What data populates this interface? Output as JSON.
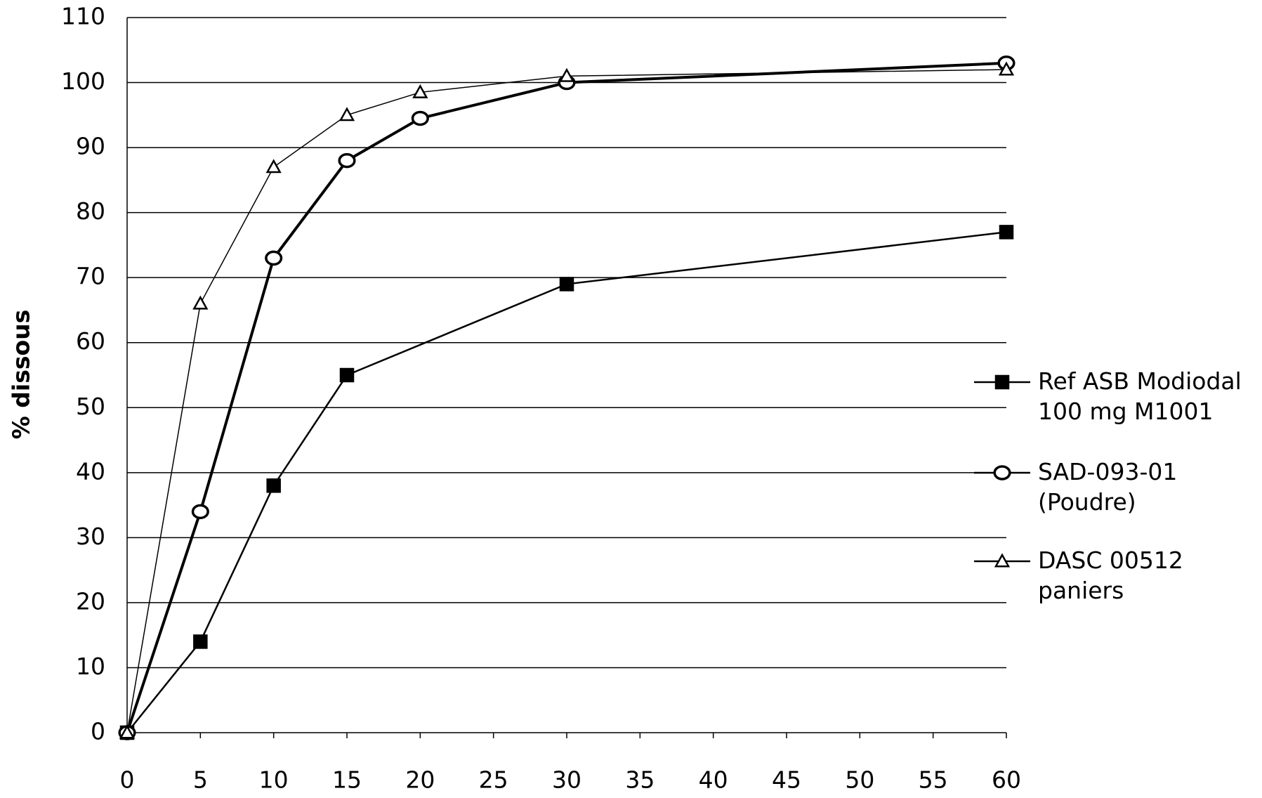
{
  "chart_data": {
    "type": "line",
    "y_label": "% dissous",
    "xlim": [
      0,
      60
    ],
    "xticks": [
      0,
      5,
      10,
      15,
      20,
      25,
      30,
      35,
      40,
      45,
      50,
      55,
      60
    ],
    "ylim": [
      0,
      110
    ],
    "yticks": [
      0,
      10,
      20,
      30,
      40,
      50,
      60,
      70,
      80,
      90,
      100,
      110
    ],
    "grid": true,
    "legend": "right",
    "series": [
      {
        "name": "Ref ASB Modiodal 100 mg M1001",
        "color": "#000000",
        "marker": "square",
        "x": [
          0,
          5,
          10,
          15,
          30,
          60
        ],
        "values": [
          0,
          14,
          38,
          55,
          69,
          77
        ]
      },
      {
        "name": "SAD-093-01 (Poudre)",
        "color": "#000000",
        "marker": "circle",
        "x": [
          0,
          5,
          10,
          15,
          20,
          30,
          60
        ],
        "values": [
          0,
          34,
          73,
          88,
          94.5,
          100,
          103
        ]
      },
      {
        "name": "DASC 00512 paniers",
        "color": "#000000",
        "marker": "triangle",
        "x": [
          0,
          5,
          10,
          15,
          20,
          30,
          60
        ],
        "values": [
          0,
          66,
          87,
          95,
          98.5,
          101,
          102
        ]
      }
    ]
  }
}
